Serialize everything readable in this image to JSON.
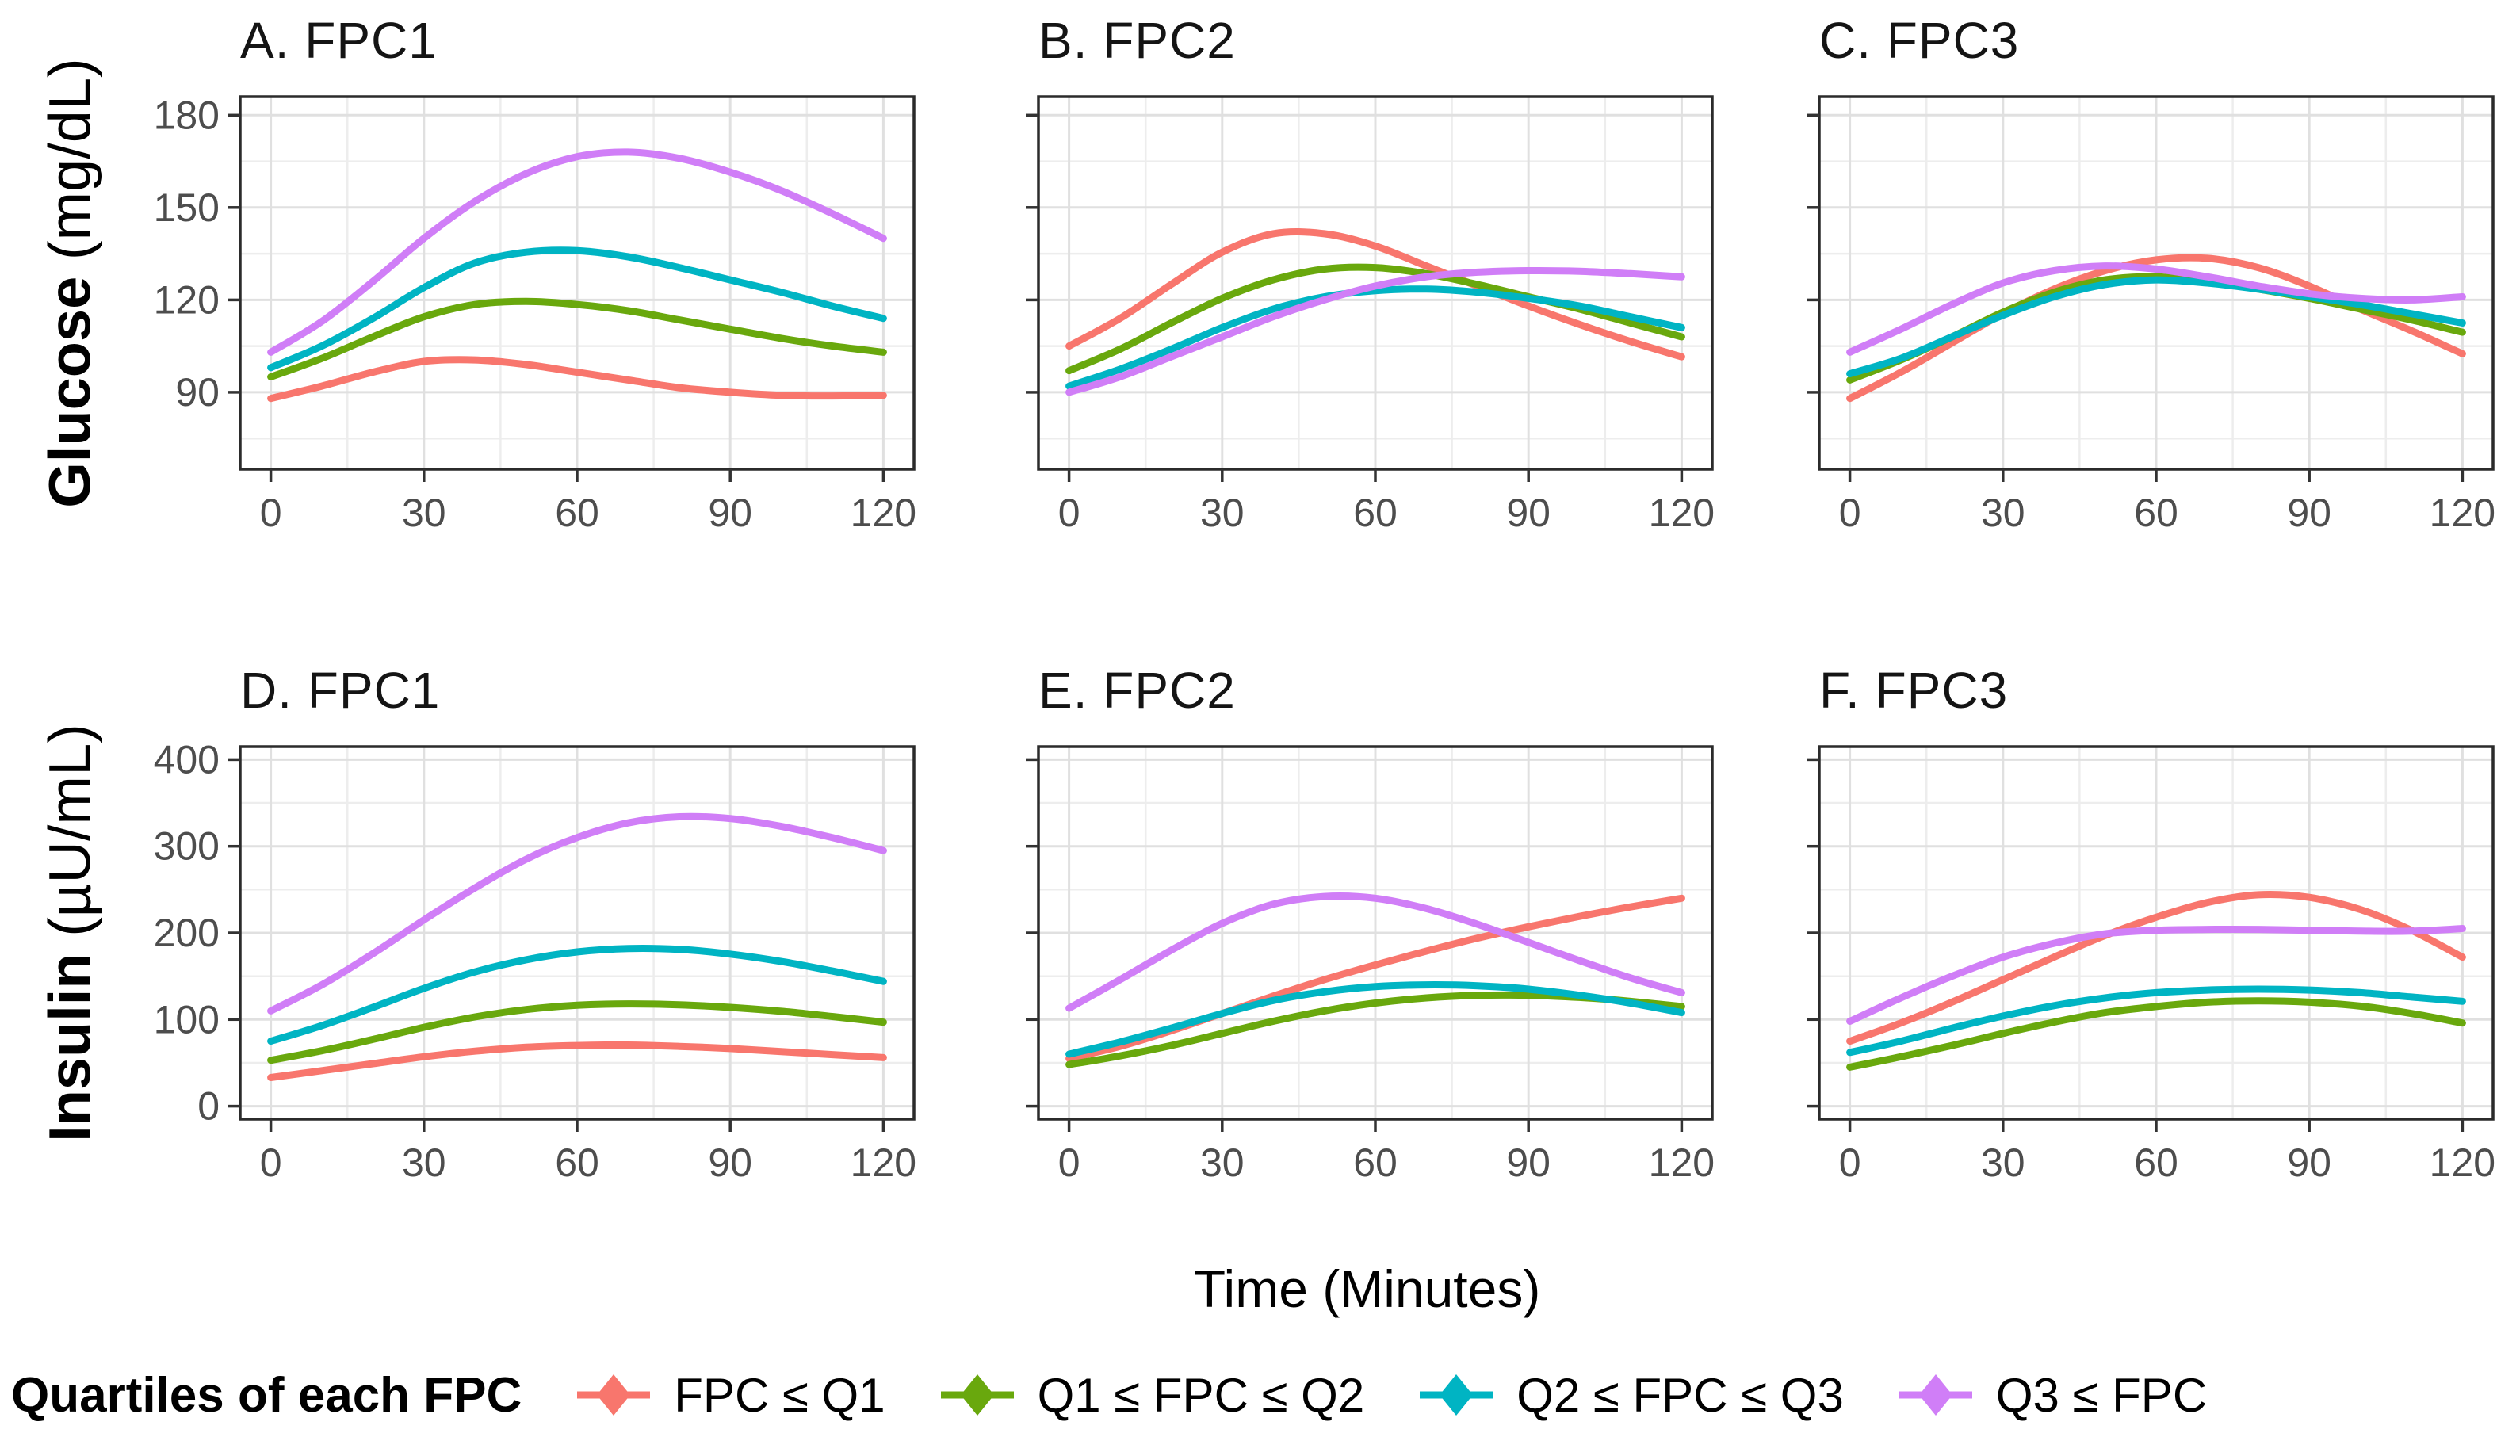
{
  "figure": {
    "background": "#ffffff",
    "panel_background": "#ffffff",
    "panel_border_color": "#2b2b2b",
    "grid_major_color": "#e0e0e0",
    "grid_minor_color": "#ededed",
    "tick_label_color": "#4d4d4d",
    "line_width": 9
  },
  "y_axis_labels": {
    "glucose_word": "Glucose",
    "glucose_unit": " (mg/dL)",
    "insulin_word": "Insulin",
    "insulin_unit": " (µU/mL)"
  },
  "legend": {
    "title": "Quartiles of each FPC",
    "items": [
      {
        "label": "FPC ≤ Q1",
        "color": "#F8766D"
      },
      {
        "label": "Q1 ≤ FPC ≤ Q2",
        "color": "#69A80D"
      },
      {
        "label": "Q2 ≤ FPC ≤ Q3",
        "color": "#00B4C3"
      },
      {
        "label": "Q3 ≤ FPC",
        "color": "#D07EF7"
      }
    ]
  },
  "chart_data": {
    "type": "line",
    "xlabel": "Time (Minutes)",
    "x": [
      0,
      10,
      20,
      30,
      40,
      50,
      60,
      70,
      80,
      90,
      100,
      110,
      120
    ],
    "x_ticks": [
      0,
      30,
      60,
      90,
      120
    ],
    "x_minor_ticks": [
      15,
      45,
      75,
      105
    ],
    "xlim": [
      -6,
      126
    ],
    "legend_position": "bottom",
    "grid": "on",
    "rows": [
      {
        "ylabel": "Glucose (mg/dL)",
        "ylim": [
          65,
          186
        ],
        "yticks": [
          90,
          120,
          150,
          180
        ]
      },
      {
        "ylabel": "Insulin (µU/mL)",
        "ylim": [
          -15,
          415
        ],
        "yticks": [
          0,
          100,
          200,
          300,
          400
        ]
      }
    ],
    "panels": [
      {
        "id": "A",
        "title": "A. FPC1",
        "row": 0,
        "show_y_labels": true,
        "series": [
          {
            "name": "FPC ≤ Q1",
            "color": "#F8766D",
            "values": [
              88,
              92,
              96.5,
              100,
              100.5,
              99,
              96.5,
              94,
              91.5,
              90,
              89,
              88.8,
              89
            ]
          },
          {
            "name": "Q1 ≤ FPC ≤ Q2",
            "color": "#69A80D",
            "values": [
              95,
              101,
              108,
              114.5,
              118.5,
              119.5,
              118.5,
              116.5,
              113.5,
              110.5,
              107.5,
              105,
              103
            ]
          },
          {
            "name": "Q2 ≤ FPC ≤ Q3",
            "color": "#00B4C3",
            "values": [
              98,
              105,
              114,
              124,
              132,
              135.5,
              136,
              134,
              130.5,
              126.5,
              122.5,
              118,
              114
            ]
          },
          {
            "name": "Q3 ≤ FPC",
            "color": "#D07EF7",
            "values": [
              103,
              113,
              126,
              140,
              152,
              161,
              166.5,
              168,
              166,
              161.5,
              155.5,
              148,
              140
            ]
          }
        ]
      },
      {
        "id": "B",
        "title": "B. FPC2",
        "row": 0,
        "show_y_labels": false,
        "series": [
          {
            "name": "FPC ≤ Q1",
            "color": "#F8766D",
            "values": [
              105,
              114,
              125,
              135.5,
              141.5,
              141.5,
              137.5,
              131,
              124.5,
              118,
              112,
              106.5,
              101.5
            ]
          },
          {
            "name": "Q1 ≤ FPC ≤ Q2",
            "color": "#69A80D",
            "values": [
              97,
              104,
              112.5,
              120.5,
              126.5,
              130,
              130.5,
              128.5,
              125,
              121,
              117,
              112.5,
              108
            ]
          },
          {
            "name": "Q2 ≤ FPC ≤ Q3",
            "color": "#00B4C3",
            "values": [
              92,
              97.5,
              104,
              111,
              117,
              121,
              123,
              123.5,
              122.5,
              120.5,
              118,
              114.5,
              111
            ]
          },
          {
            "name": "Q3 ≤ FPC",
            "color": "#D07EF7",
            "values": [
              90,
              95,
              101.5,
              108,
              114.5,
              120,
              124.5,
              127.5,
              129,
              129.5,
              129.3,
              128.5,
              127.5
            ]
          }
        ]
      },
      {
        "id": "C",
        "title": "C. FPC3",
        "row": 0,
        "show_y_labels": false,
        "series": [
          {
            "name": "FPC ≤ Q1",
            "color": "#F8766D",
            "values": [
              88,
              96.5,
              106,
              115.5,
              123.5,
              129.5,
              133,
              133.5,
              130.5,
              124.5,
              117,
              110,
              102.5
            ]
          },
          {
            "name": "Q1 ≤ FPC ≤ Q2",
            "color": "#69A80D",
            "values": [
              94,
              100.5,
              108,
              116,
              122.5,
              126.5,
              127.5,
              126,
              123.5,
              120.5,
              117,
              113.5,
              109.5
            ]
          },
          {
            "name": "Q2 ≤ FPC ≤ Q3",
            "color": "#00B4C3",
            "values": [
              96,
              101,
              108,
              115,
              121,
              125,
              126.5,
              125.5,
              123.5,
              121,
              118.5,
              115.5,
              112.5
            ]
          },
          {
            "name": "Q3 ≤ FPC",
            "color": "#D07EF7",
            "values": [
              103,
              110.5,
              118.5,
              125.5,
              129.5,
              131,
              130,
              127.5,
              124.5,
              122,
              120.5,
              120,
              121
            ]
          }
        ]
      },
      {
        "id": "D",
        "title": "D. FPC1",
        "row": 1,
        "show_y_labels": true,
        "series": [
          {
            "name": "FPC ≤ Q1",
            "color": "#F8766D",
            "values": [
              33,
              41,
              49,
              57,
              63.5,
              68,
              70,
              70.5,
              69,
              66.5,
              63,
              59.5,
              56
            ]
          },
          {
            "name": "Q1 ≤ FPC ≤ Q2",
            "color": "#69A80D",
            "values": [
              53,
              64,
              77,
              91,
              103,
              111.5,
              116.5,
              118,
              117,
              114,
              109.5,
              103.5,
              97
            ]
          },
          {
            "name": "Q2 ≤ FPC ≤ Q3",
            "color": "#00B4C3",
            "values": [
              75,
              93,
              114,
              136,
              155,
              169,
              178,
              182,
              181,
              175.5,
              167,
              156,
              144
            ]
          },
          {
            "name": "Q3 ≤ FPC",
            "color": "#D07EF7",
            "values": [
              110,
              140,
              176,
              215,
              252,
              285,
              310,
              327,
              334,
              332,
              323,
              310,
              295
            ]
          }
        ]
      },
      {
        "id": "E",
        "title": "E. FPC2",
        "row": 1,
        "show_y_labels": false,
        "series": [
          {
            "name": "FPC ≤ Q1",
            "color": "#F8766D",
            "values": [
              55,
              69,
              87,
              107,
              127,
              146,
              163,
              179,
              194,
              207,
              219,
              230,
              240
            ]
          },
          {
            "name": "Q1 ≤ FPC ≤ Q2",
            "color": "#69A80D",
            "values": [
              48,
              58,
              70,
              84,
              98,
              110,
              119,
              125,
              128,
              128,
              125.5,
              121,
              115
            ]
          },
          {
            "name": "Q2 ≤ FPC ≤ Q3",
            "color": "#00B4C3",
            "values": [
              60,
              74,
              90,
              107,
              122,
              132,
              138,
              140,
              139,
              135,
              128,
              119,
              108
            ]
          },
          {
            "name": "Q3 ≤ FPC",
            "color": "#D07EF7",
            "values": [
              113,
              146,
              180,
              211,
              233,
              242,
              240,
              228,
              210,
              189,
              168,
              148,
              131
            ]
          }
        ]
      },
      {
        "id": "F",
        "title": "F. FPC3",
        "row": 1,
        "show_y_labels": false,
        "series": [
          {
            "name": "FPC ≤ Q1",
            "color": "#F8766D",
            "values": [
              75,
              96,
              120,
              146,
              172,
              197,
              218,
              235,
              244,
              241,
              227,
              203,
              172
            ]
          },
          {
            "name": "Q1 ≤ FPC ≤ Q2",
            "color": "#69A80D",
            "values": [
              45,
              57,
              70,
              84,
              97,
              108,
              115,
              120,
              121.5,
              120,
              115.5,
              107,
              96
            ]
          },
          {
            "name": "Q2 ≤ FPC ≤ Q3",
            "color": "#00B4C3",
            "values": [
              62,
              75,
              90,
              104,
              116,
              125,
              131,
              134,
              135,
              134,
              131,
              126,
              121
            ]
          },
          {
            "name": "Q3 ≤ FPC",
            "color": "#D07EF7",
            "values": [
              98,
              125,
              150,
              172,
              188,
              199,
              203,
              204,
              204,
              203,
              202,
              202,
              205
            ]
          }
        ]
      }
    ]
  }
}
